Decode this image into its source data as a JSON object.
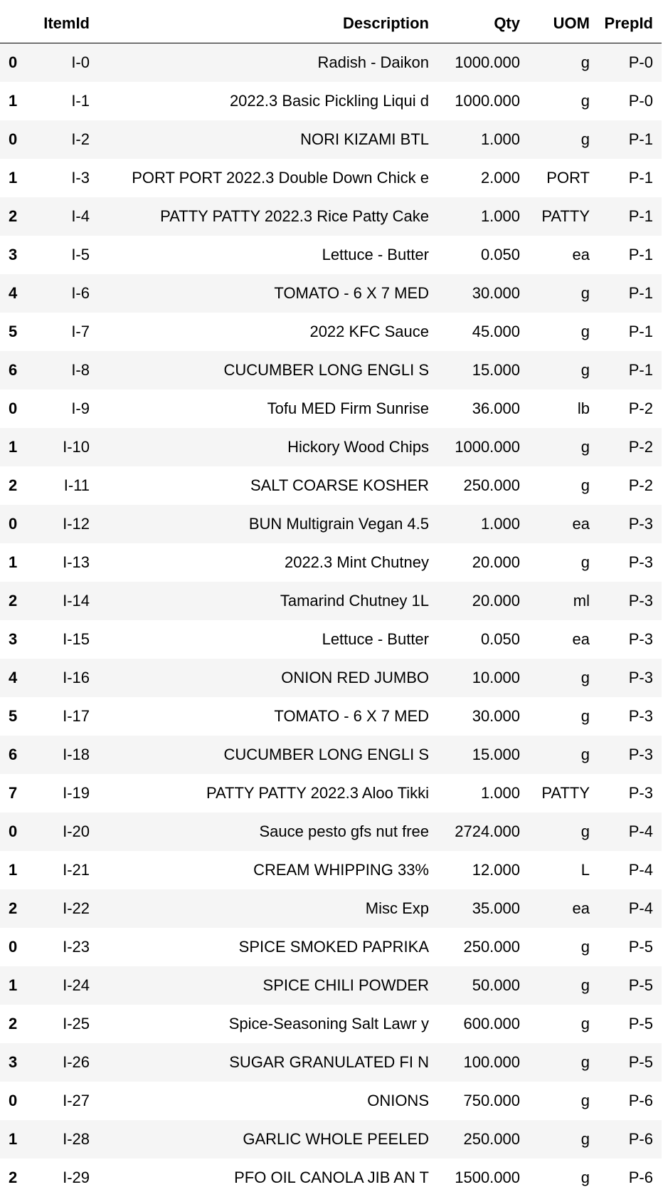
{
  "table": {
    "headers": [
      "",
      "ItemId",
      "Description",
      "Qty",
      "UOM",
      "PrepId"
    ],
    "rows": [
      [
        "0",
        "I-0",
        "Radish - Daikon",
        "1000.000",
        "g",
        "P-0"
      ],
      [
        "1",
        "I-1",
        "2022.3 Basic Pickling Liqui d",
        "1000.000",
        "g",
        "P-0"
      ],
      [
        "0",
        "I-2",
        "NORI KIZAMI BTL",
        "1.000",
        "g",
        "P-1"
      ],
      [
        "1",
        "I-3",
        "PORT PORT 2022.3 Double Down Chick e",
        "2.000",
        "PORT",
        "P-1"
      ],
      [
        "2",
        "I-4",
        "PATTY PATTY 2022.3 Rice Patty Cake",
        "1.000",
        "PATTY",
        "P-1"
      ],
      [
        "3",
        "I-5",
        "Lettuce - Butter",
        "0.050",
        "ea",
        "P-1"
      ],
      [
        "4",
        "I-6",
        "TOMATO - 6 X 7 MED",
        "30.000",
        "g",
        "P-1"
      ],
      [
        "5",
        "I-7",
        "2022 KFC Sauce",
        "45.000",
        "g",
        "P-1"
      ],
      [
        "6",
        "I-8",
        "CUCUMBER LONG ENGLI S",
        "15.000",
        "g",
        "P-1"
      ],
      [
        "0",
        "I-9",
        "Tofu MED Firm Sunrise",
        "36.000",
        "lb",
        "P-2"
      ],
      [
        "1",
        "I-10",
        "Hickory Wood Chips",
        "1000.000",
        "g",
        "P-2"
      ],
      [
        "2",
        "I-11",
        "SALT COARSE KOSHER",
        "250.000",
        "g",
        "P-2"
      ],
      [
        "0",
        "I-12",
        "BUN Multigrain Vegan 4.5",
        "1.000",
        "ea",
        "P-3"
      ],
      [
        "1",
        "I-13",
        "2022.3 Mint Chutney",
        "20.000",
        "g",
        "P-3"
      ],
      [
        "2",
        "I-14",
        "Tamarind Chutney 1L",
        "20.000",
        "ml",
        "P-3"
      ],
      [
        "3",
        "I-15",
        "Lettuce - Butter",
        "0.050",
        "ea",
        "P-3"
      ],
      [
        "4",
        "I-16",
        "ONION RED JUMBO",
        "10.000",
        "g",
        "P-3"
      ],
      [
        "5",
        "I-17",
        "TOMATO - 6 X 7 MED",
        "30.000",
        "g",
        "P-3"
      ],
      [
        "6",
        "I-18",
        "CUCUMBER LONG ENGLI S",
        "15.000",
        "g",
        "P-3"
      ],
      [
        "7",
        "I-19",
        "PATTY PATTY 2022.3 Aloo Tikki",
        "1.000",
        "PATTY",
        "P-3"
      ],
      [
        "0",
        "I-20",
        "Sauce pesto gfs nut free",
        "2724.000",
        "g",
        "P-4"
      ],
      [
        "1",
        "I-21",
        "CREAM WHIPPING 33%",
        "12.000",
        "L",
        "P-4"
      ],
      [
        "2",
        "I-22",
        "Misc Exp",
        "35.000",
        "ea",
        "P-4"
      ],
      [
        "0",
        "I-23",
        "SPICE SMOKED PAPRIKA",
        "250.000",
        "g",
        "P-5"
      ],
      [
        "1",
        "I-24",
        "SPICE CHILI POWDER",
        "50.000",
        "g",
        "P-5"
      ],
      [
        "2",
        "I-25",
        "Spice-Seasoning Salt Lawr y",
        "600.000",
        "g",
        "P-5"
      ],
      [
        "3",
        "I-26",
        "SUGAR GRANULATED FI N",
        "100.000",
        "g",
        "P-5"
      ],
      [
        "0",
        "I-27",
        "ONIONS",
        "750.000",
        "g",
        "P-6"
      ],
      [
        "1",
        "I-28",
        "GARLIC WHOLE PEELED",
        "250.000",
        "g",
        "P-6"
      ],
      [
        "2",
        "I-29",
        "PFO OIL CANOLA JIB AN T",
        "1500.000",
        "g",
        "P-6"
      ]
    ]
  }
}
